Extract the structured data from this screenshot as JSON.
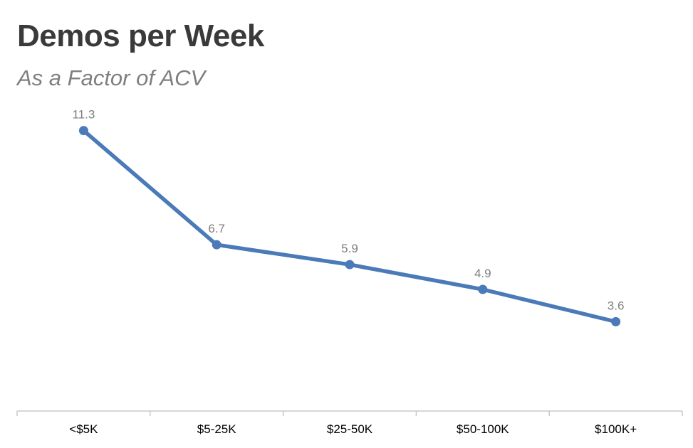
{
  "chart_data": {
    "type": "line",
    "title": "Demos per Week",
    "subtitle": "As a Factor of ACV",
    "categories": [
      "<$5K",
      "$5-25K",
      "$25-50K",
      "$50-100K",
      "$100K+"
    ],
    "series": [
      {
        "values": [
          11.3,
          6.7,
          5.9,
          4.9,
          3.6
        ]
      }
    ],
    "xlabel": "",
    "ylabel": "",
    "ylim": [
      0,
      12
    ],
    "grid": false,
    "legend": "none",
    "show_data_labels": true,
    "line_color": "#4a7ab8",
    "axis_color": "#c9c9c9",
    "title_color": "#3a3a3a",
    "subtitle_color": "#7f7f7f",
    "data_label_color": "#7f7f7f"
  }
}
